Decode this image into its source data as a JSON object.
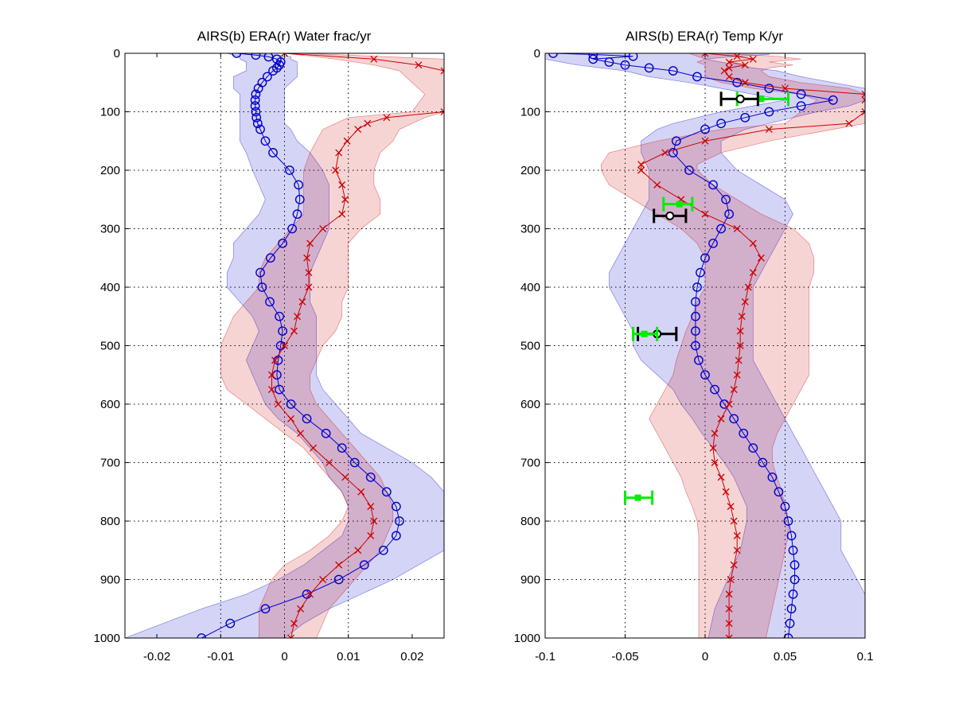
{
  "chart_data": [
    {
      "type": "line",
      "title": "AIRS(b) ERA(r) Water frac/yr",
      "xlim": [
        -0.025,
        0.025
      ],
      "ylim": [
        0,
        1000
      ],
      "y_reversed": true,
      "grid": true,
      "xticks": [
        -0.02,
        -0.01,
        0,
        0.01,
        0.02
      ],
      "xtick_labels": [
        "-0.02",
        "-0.01",
        "0",
        "0.01",
        "0.02"
      ],
      "yticks": [
        0,
        100,
        200,
        300,
        400,
        500,
        600,
        700,
        800,
        900,
        1000
      ],
      "ytick_labels": [
        "0",
        "100",
        "200",
        "300",
        "400",
        "500",
        "600",
        "700",
        "800",
        "900",
        "1000"
      ],
      "series": [
        {
          "color": "#0000cc",
          "marker": "circle",
          "pressure": [
            0,
            3,
            6,
            10,
            15,
            20,
            25,
            30,
            40,
            50,
            60,
            70,
            80,
            90,
            100,
            110,
            120,
            130,
            150,
            170,
            200,
            225,
            250,
            275,
            300,
            325,
            350,
            375,
            400,
            425,
            450,
            475,
            500,
            525,
            550,
            575,
            600,
            625,
            650,
            675,
            700,
            725,
            750,
            775,
            800,
            825,
            850,
            875,
            900,
            925,
            950,
            975,
            1000
          ],
          "values": [
            -0.0075,
            -0.0045,
            -0.0025,
            -0.0012,
            -0.0006,
            -0.0008,
            -0.0012,
            -0.0018,
            -0.0027,
            -0.0035,
            -0.0041,
            -0.0045,
            -0.0046,
            -0.0046,
            -0.0045,
            -0.0044,
            -0.0042,
            -0.0038,
            -0.003,
            -0.0018,
            0.0008,
            0.0022,
            0.0024,
            0.002,
            0.0012,
            -0.0003,
            -0.0022,
            -0.0038,
            -0.0035,
            -0.0023,
            -0.0008,
            -0.0003,
            -0.0006,
            -0.001,
            -0.0012,
            -0.0008,
            0.001,
            0.0035,
            0.0065,
            0.009,
            0.011,
            0.0135,
            0.016,
            0.0175,
            0.018,
            0.0175,
            0.0155,
            0.0125,
            0.0085,
            0.0035,
            -0.003,
            -0.0085,
            -0.013
          ],
          "band_low": [
            -0.009,
            -0.008,
            -0.007,
            -0.007,
            -0.006,
            -0.006,
            -0.006,
            -0.006,
            -0.008,
            -0.008,
            -0.008,
            -0.007,
            -0.007,
            -0.007,
            -0.007,
            -0.007,
            -0.007,
            -0.007,
            -0.007,
            -0.006,
            -0.005,
            -0.004,
            -0.003,
            -0.004,
            -0.006,
            -0.008,
            -0.008,
            -0.009,
            -0.009,
            -0.007,
            -0.005,
            -0.004,
            -0.005,
            -0.006,
            -0.005,
            -0.004,
            -0.003,
            -0.001,
            0.002,
            0.004,
            0.006,
            0.007,
            0.009,
            0.01,
            0.01,
            0.009,
            0.006,
            0.003,
            -0.001,
            -0.006,
            -0.013,
            -0.019,
            -0.025
          ],
          "band_high": [
            -0.006,
            -0.001,
            0.001,
            0.001,
            0.002,
            0.002,
            0.002,
            0.002,
            0.002,
            0.001,
            0.0,
            0.0,
            0.0,
            0.0,
            0.0,
            0.0,
            0.0,
            0.001,
            0.002,
            0.004,
            0.006,
            0.007,
            0.007,
            0.007,
            0.007,
            0.006,
            0.005,
            0.004,
            0.004,
            0.004,
            0.005,
            0.005,
            0.005,
            0.005,
            0.005,
            0.006,
            0.008,
            0.01,
            0.012,
            0.016,
            0.02,
            0.023,
            0.025,
            0.025,
            0.025,
            0.025,
            0.025,
            0.021,
            0.017,
            0.012,
            0.007,
            0.003,
            0.0
          ]
        },
        {
          "color": "#cc0000",
          "marker": "x",
          "pressure": [
            0,
            10,
            20,
            30,
            70,
            100,
            110,
            120,
            130,
            150,
            170,
            200,
            225,
            250,
            275,
            300,
            325,
            350,
            375,
            400,
            425,
            450,
            475,
            500,
            525,
            550,
            575,
            600,
            625,
            650,
            675,
            700,
            725,
            750,
            775,
            800,
            825,
            850,
            875,
            900,
            925,
            950,
            975,
            1000
          ],
          "values": [
            0.0,
            0.014,
            0.021,
            0.025,
            0.03,
            0.025,
            0.016,
            0.013,
            0.0115,
            0.0098,
            0.0085,
            0.008,
            0.009,
            0.0095,
            0.009,
            0.006,
            0.004,
            0.0035,
            0.0038,
            0.0038,
            0.0028,
            0.002,
            0.0015,
            0.0,
            -0.0015,
            -0.002,
            -0.002,
            -0.001,
            0.001,
            0.0025,
            0.0045,
            0.007,
            0.0095,
            0.012,
            0.0135,
            0.014,
            0.0135,
            0.0115,
            0.0085,
            0.006,
            0.004,
            0.0025,
            0.0015,
            0.001
          ],
          "band_low": [
            0.0,
            0.008,
            0.014,
            0.018,
            0.022,
            0.02,
            0.01,
            0.008,
            0.006,
            0.005,
            0.004,
            0.003,
            0.003,
            0.003,
            0.003,
            0.001,
            -0.001,
            -0.003,
            -0.004,
            -0.004,
            -0.006,
            -0.008,
            -0.009,
            -0.01,
            -0.01,
            -0.01,
            -0.009,
            -0.006,
            -0.003,
            0.0,
            0.003,
            0.005,
            0.007,
            0.009,
            0.01,
            0.009,
            0.007,
            0.004,
            0.0,
            -0.002,
            -0.003,
            -0.004,
            -0.004,
            -0.004
          ],
          "band_high": [
            0.003,
            0.025,
            0.025,
            0.025,
            0.025,
            0.025,
            0.022,
            0.02,
            0.018,
            0.017,
            0.015,
            0.014,
            0.014,
            0.015,
            0.015,
            0.012,
            0.01,
            0.01,
            0.01,
            0.01,
            0.009,
            0.009,
            0.008,
            0.006,
            0.005,
            0.004,
            0.004,
            0.005,
            0.007,
            0.009,
            0.011,
            0.013,
            0.015,
            0.016,
            0.017,
            0.017,
            0.016,
            0.015,
            0.013,
            0.011,
            0.009,
            0.007,
            0.006,
            0.005
          ]
        }
      ]
    },
    {
      "type": "line",
      "title": "AIRS(b) ERA(r) Temp K/yr",
      "xlim": [
        -0.1,
        0.1
      ],
      "ylim": [
        0,
        1000
      ],
      "y_reversed": true,
      "grid": true,
      "xticks": [
        -0.1,
        -0.05,
        0,
        0.05,
        0.1
      ],
      "xtick_labels": [
        "-0.1",
        "-0.05",
        "0",
        "0.05",
        "0.1"
      ],
      "yticks": [
        0,
        100,
        200,
        300,
        400,
        500,
        600,
        700,
        800,
        900,
        1000
      ],
      "ytick_labels": [
        "0",
        "100",
        "200",
        "300",
        "400",
        "500",
        "600",
        "700",
        "800",
        "900",
        "1000"
      ],
      "series": [
        {
          "color": "#0000cc",
          "marker": "circle",
          "pressure": [
            0,
            2,
            5,
            10,
            15,
            20,
            25,
            30,
            40,
            50,
            60,
            70,
            80,
            90,
            100,
            110,
            120,
            130,
            150,
            170,
            200,
            225,
            250,
            275,
            300,
            325,
            350,
            375,
            400,
            425,
            450,
            475,
            500,
            525,
            550,
            575,
            600,
            625,
            650,
            675,
            700,
            725,
            750,
            775,
            800,
            825,
            850,
            875,
            900,
            925,
            950,
            975,
            1000
          ],
          "values": [
            -0.095,
            -0.07,
            -0.045,
            -0.07,
            -0.06,
            -0.05,
            -0.035,
            -0.02,
            -0.005,
            0.02,
            0.04,
            0.06,
            0.08,
            0.06,
            0.04,
            0.025,
            0.01,
            0.0,
            -0.018,
            -0.02,
            -0.01,
            0.005,
            0.013,
            0.015,
            0.01,
            0.005,
            0.0,
            -0.003,
            -0.005,
            -0.006,
            -0.006,
            -0.006,
            -0.006,
            -0.004,
            0.0,
            0.006,
            0.012,
            0.018,
            0.024,
            0.03,
            0.036,
            0.042,
            0.046,
            0.05,
            0.052,
            0.054,
            0.055,
            0.056,
            0.056,
            0.055,
            0.054,
            0.053,
            0.052
          ],
          "band_low": [
            -0.1,
            -0.1,
            -0.1,
            -0.1,
            -0.09,
            -0.08,
            -0.065,
            -0.05,
            -0.035,
            -0.01,
            0.01,
            0.03,
            0.05,
            0.03,
            0.01,
            -0.005,
            -0.02,
            -0.03,
            -0.04,
            -0.04,
            -0.035,
            -0.035,
            -0.035,
            -0.04,
            -0.045,
            -0.05,
            -0.055,
            -0.06,
            -0.06,
            -0.055,
            -0.05,
            -0.045,
            -0.045,
            -0.04,
            -0.03,
            -0.02,
            -0.015,
            -0.008,
            -0.002,
            0.005,
            0.012,
            0.018,
            0.022,
            0.026,
            0.026,
            0.024,
            0.022,
            0.018,
            0.014,
            0.01,
            0.006,
            0.004,
            0.002
          ],
          "band_high": [
            0.04,
            0.04,
            0.02,
            0.0,
            0.01,
            0.02,
            0.03,
            0.045,
            0.06,
            0.08,
            0.1,
            0.1,
            0.1,
            0.09,
            0.07,
            0.055,
            0.04,
            0.025,
            0.01,
            0.01,
            0.02,
            0.035,
            0.05,
            0.055,
            0.05,
            0.045,
            0.04,
            0.035,
            0.03,
            0.03,
            0.03,
            0.03,
            0.03,
            0.03,
            0.035,
            0.04,
            0.045,
            0.05,
            0.055,
            0.06,
            0.065,
            0.07,
            0.075,
            0.08,
            0.085,
            0.085,
            0.085,
            0.09,
            0.095,
            0.1,
            0.1,
            0.1,
            0.1
          ]
        },
        {
          "color": "#cc0000",
          "marker": "x",
          "pressure": [
            0,
            5,
            10,
            15,
            20,
            25,
            30,
            40,
            50,
            60,
            70,
            80,
            100,
            120,
            130,
            150,
            170,
            190,
            200,
            225,
            250,
            275,
            300,
            325,
            350,
            375,
            400,
            425,
            450,
            475,
            500,
            525,
            550,
            575,
            600,
            625,
            650,
            675,
            700,
            725,
            750,
            775,
            800,
            825,
            850,
            875,
            900,
            925,
            950,
            975,
            1000
          ],
          "values": [
            0.0,
            0.02,
            0.03,
            0.015,
            0.025,
            0.015,
            0.012,
            0.015,
            0.025,
            0.05,
            0.1,
            0.1,
            0.1,
            0.09,
            0.04,
            0.0,
            -0.025,
            -0.04,
            -0.04,
            -0.03,
            -0.015,
            0.0,
            0.02,
            0.03,
            0.035,
            0.03,
            0.027,
            0.025,
            0.023,
            0.022,
            0.022,
            0.021,
            0.02,
            0.018,
            0.015,
            0.01,
            0.006,
            0.005,
            0.006,
            0.01,
            0.013,
            0.016,
            0.018,
            0.02,
            0.02,
            0.018,
            0.016,
            0.015,
            0.015,
            0.015,
            0.015
          ],
          "band_low": [
            -0.01,
            -0.005,
            0.0,
            -0.005,
            0.0,
            0.0,
            0.0,
            0.0,
            0.01,
            0.03,
            0.06,
            0.07,
            0.06,
            0.05,
            0.01,
            -0.03,
            -0.06,
            -0.065,
            -0.065,
            -0.06,
            -0.045,
            -0.03,
            -0.015,
            -0.005,
            0.0,
            0.0,
            0.0,
            -0.005,
            -0.008,
            -0.012,
            -0.015,
            -0.018,
            -0.02,
            -0.025,
            -0.03,
            -0.035,
            -0.03,
            -0.025,
            -0.02,
            -0.015,
            -0.012,
            -0.008,
            -0.005,
            -0.004,
            -0.004,
            -0.004,
            -0.004,
            -0.004,
            -0.004,
            -0.004,
            -0.004
          ],
          "band_high": [
            0.01,
            0.045,
            0.06,
            0.04,
            0.055,
            0.04,
            0.035,
            0.04,
            0.06,
            0.09,
            0.1,
            0.1,
            0.1,
            0.1,
            0.08,
            0.04,
            0.01,
            -0.005,
            -0.005,
            0.005,
            0.02,
            0.035,
            0.055,
            0.065,
            0.068,
            0.068,
            0.065,
            0.065,
            0.065,
            0.065,
            0.065,
            0.065,
            0.065,
            0.06,
            0.055,
            0.05,
            0.045,
            0.042,
            0.042,
            0.045,
            0.048,
            0.05,
            0.052,
            0.052,
            0.05,
            0.048,
            0.046,
            0.044,
            0.042,
            0.04,
            0.038
          ]
        }
      ],
      "error_points": [
        {
          "color": "#00ee00",
          "pressure": 78,
          "value": 0.035,
          "low": 0.02,
          "high": 0.052
        },
        {
          "color": "#000000",
          "pressure": 78,
          "value": 0.022,
          "low": 0.01,
          "high": 0.033
        },
        {
          "color": "#00ee00",
          "pressure": 258,
          "value": -0.016,
          "low": -0.026,
          "high": -0.008
        },
        {
          "color": "#000000",
          "pressure": 278,
          "value": -0.022,
          "low": -0.032,
          "high": -0.012
        },
        {
          "color": "#000000",
          "pressure": 480,
          "value": -0.03,
          "low": -0.042,
          "high": -0.018
        },
        {
          "color": "#00ee00",
          "pressure": 480,
          "value": -0.038,
          "low": -0.045,
          "high": -0.03
        },
        {
          "color": "#00ee00",
          "pressure": 760,
          "value": -0.042,
          "low": -0.05,
          "high": -0.033
        }
      ]
    }
  ]
}
